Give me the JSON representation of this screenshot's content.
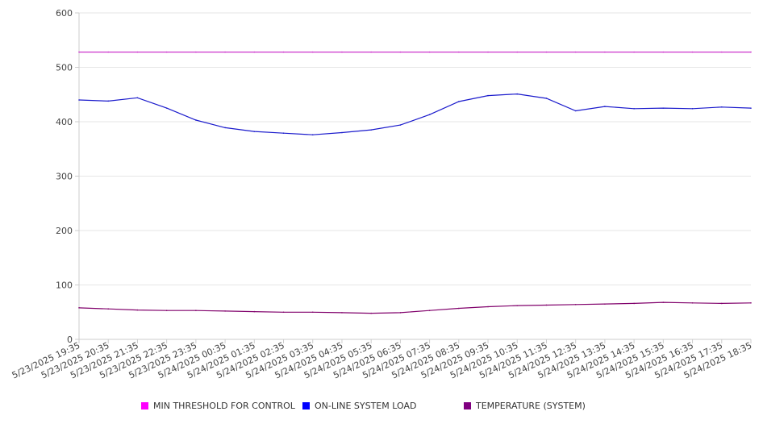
{
  "chart_data": {
    "type": "line",
    "x_tick_labels": [
      "5/23/2025 19:35",
      "5/23/2025 20:35",
      "5/23/2025 21:35",
      "5/23/2025 22:35",
      "5/23/2025 23:35",
      "5/24/2025 00:35",
      "5/24/2025 01:35",
      "5/24/2025 02:35",
      "5/24/2025 03:35",
      "5/24/2025 04:35",
      "5/24/2025 05:35",
      "5/24/2025 06:35",
      "5/24/2025 07:35",
      "5/24/2025 08:35",
      "5/24/2025 09:35",
      "5/24/2025 10:35",
      "5/24/2025 11:35",
      "5/24/2025 12:35",
      "5/24/2025 13:35",
      "5/24/2025 14:35",
      "5/24/2025 15:35",
      "5/24/2025 16:35",
      "5/24/2025 17:35",
      "5/24/2025 18:35"
    ],
    "x": [
      "5/23/2025 19:35",
      "5/23/2025 20:35",
      "5/23/2025 21:35",
      "5/23/2025 22:35",
      "5/23/2025 23:35",
      "5/24/2025 00:35",
      "5/24/2025 01:35",
      "5/24/2025 02:35",
      "5/24/2025 03:35",
      "5/24/2025 04:35",
      "5/24/2025 05:35",
      "5/24/2025 06:35",
      "5/24/2025 07:35",
      "5/24/2025 08:35",
      "5/24/2025 09:35",
      "5/24/2025 10:35",
      "5/24/2025 11:35",
      "5/24/2025 12:35",
      "5/24/2025 13:35",
      "5/24/2025 14:35",
      "5/24/2025 15:35",
      "5/24/2025 16:35",
      "5/24/2025 17:35",
      "5/24/2025 18:35"
    ],
    "ylim": [
      0,
      600
    ],
    "y_ticks": [
      0,
      100,
      200,
      300,
      400,
      500,
      600
    ],
    "grid": true,
    "legend_position": "bottom",
    "series": [
      {
        "name": "MIN THRESHOLD FOR CONTROL",
        "color": "#cc33cc",
        "values": [
          528,
          528,
          528,
          528,
          528,
          528,
          528,
          528,
          528,
          528,
          528,
          528,
          528,
          528,
          528,
          528,
          528,
          528,
          528,
          528,
          528,
          528,
          528,
          528
        ]
      },
      {
        "name": "ON-LINE SYSTEM LOAD",
        "color": "#1a1acc",
        "values": [
          440,
          438,
          444,
          425,
          403,
          389,
          382,
          379,
          376,
          380,
          385,
          394,
          413,
          437,
          448,
          451,
          443,
          420,
          428,
          424,
          425,
          424,
          427,
          425
        ]
      },
      {
        "name": "TEMPERATURE (SYSTEM)",
        "color": "#80006b",
        "values": [
          58,
          56,
          54,
          53,
          53,
          52,
          51,
          50,
          50,
          49,
          48,
          49,
          53,
          57,
          60,
          62,
          63,
          64,
          65,
          66,
          68,
          67,
          66,
          67
        ]
      }
    ]
  },
  "legend": {
    "items": [
      {
        "label": "MIN THRESHOLD FOR CONTROL",
        "color": "#ff00ff"
      },
      {
        "label": "ON-LINE SYSTEM LOAD",
        "color": "#0000ff"
      },
      {
        "label": "TEMPERATURE (SYSTEM)",
        "color": "#800080"
      }
    ]
  }
}
